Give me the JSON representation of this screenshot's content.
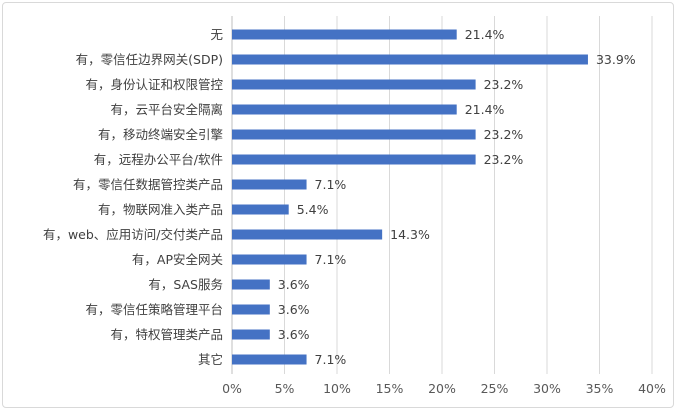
{
  "chart_data": {
    "type": "bar",
    "orientation": "horizontal",
    "title": "",
    "xlabel": "",
    "ylabel": "",
    "categories": [
      "无",
      "有，零信任边界网关(SDP)",
      "有，身份认证和权限管控",
      "有，云平台安全隔离",
      "有，移动终端安全引擎",
      "有，远程办公平台/软件",
      "有，零信任数据管控类产品",
      "有，物联网准入类产品",
      "有，web、应用访问/交付类产品",
      "有，AP安全网关",
      "有，SAS服务",
      "有，零信任策略管理平台",
      "有，特权管理类产品",
      "其它"
    ],
    "values": [
      21.4,
      33.9,
      23.2,
      21.4,
      23.2,
      23.2,
      7.1,
      5.4,
      14.3,
      7.1,
      3.6,
      3.6,
      3.6,
      7.1
    ],
    "value_labels": [
      "21.4%",
      "33.9%",
      "23.2%",
      "21.4%",
      "23.2%",
      "23.2%",
      "7.1%",
      "5.4%",
      "14.3%",
      "7.1%",
      "3.6%",
      "3.6%",
      "3.6%",
      "7.1%"
    ],
    "xlim": [
      0,
      40
    ],
    "xticks": [
      "0%",
      "5%",
      "10%",
      "15%",
      "20%",
      "25%",
      "30%",
      "35%",
      "40%"
    ],
    "grid": "vertical",
    "bar_color": "#4472c4"
  }
}
